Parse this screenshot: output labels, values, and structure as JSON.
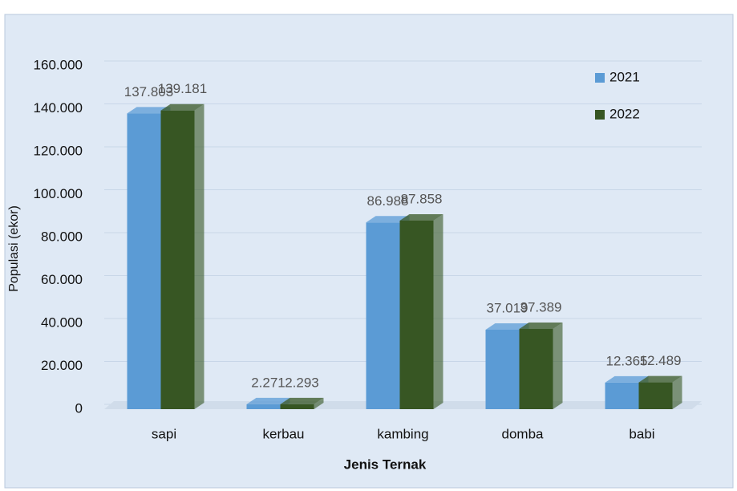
{
  "chart_data": {
    "type": "bar",
    "x_label": "Jenis Ternak",
    "y_label": "Populasi (ekor)",
    "categories": [
      "sapi",
      "kerbau",
      "kambing",
      "domba",
      "babi"
    ],
    "series": [
      {
        "name": "2021",
        "color": "#5b9bd5",
        "values": [
          137803,
          2271,
          86988,
          37019,
          12365
        ],
        "value_labels": [
          "137.803",
          "2.271",
          "86.988",
          "37.019",
          "12.365"
        ]
      },
      {
        "name": "2022",
        "color": "#375623",
        "values": [
          139181,
          2293,
          87858,
          37389,
          12489
        ],
        "value_labels": [
          "139.181",
          "2.293",
          "87.858",
          "37.389",
          "12.489"
        ]
      }
    ],
    "ylim": [
      0,
      160000
    ],
    "yticks": [
      0,
      {
        "value": 20000,
        "label": "20.000"
      },
      {
        "value": 40000,
        "label": "40.000"
      },
      {
        "value": 60000,
        "label": "60.000"
      },
      {
        "value": 80000,
        "label": "80.000"
      },
      {
        "value": 100000,
        "label": "100.000"
      },
      {
        "value": 120000,
        "label": "120.000"
      },
      {
        "value": 140000,
        "label": "140.000"
      },
      {
        "value": 160000,
        "label": "160.000"
      }
    ],
    "grid": true,
    "legend": "top-right"
  }
}
